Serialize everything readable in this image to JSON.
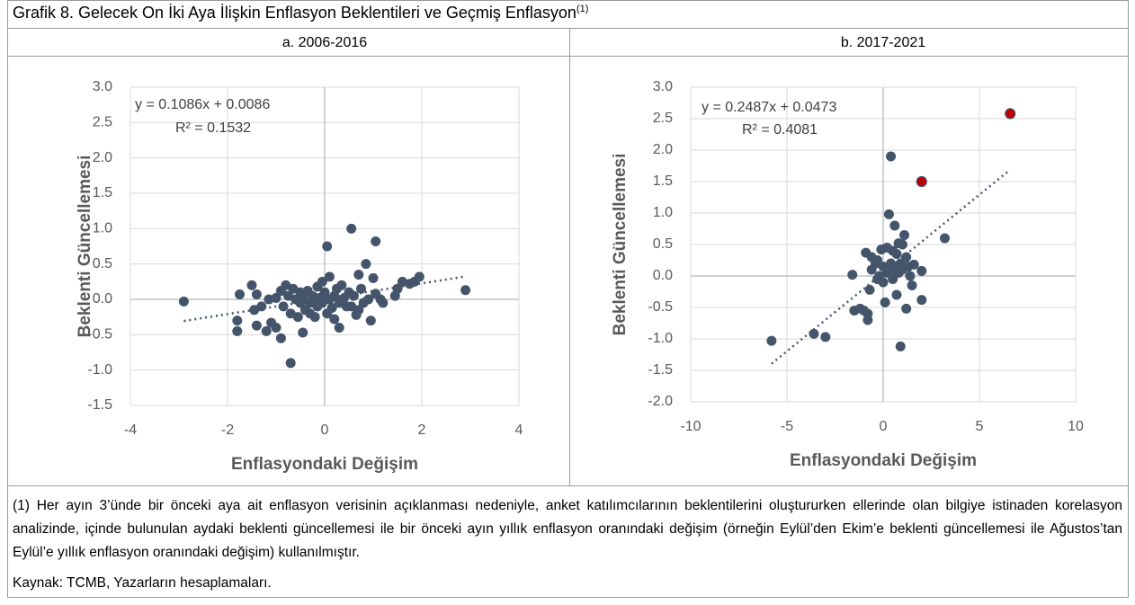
{
  "title": "Grafik 8. Gelecek On İki Aya İlişkin Enflasyon Beklentileri ve Geçmiş Enflasyon",
  "title_note_marker": "(1)",
  "note": "(1) Her ayın 3’ünde bir önceki aya ait enflasyon verisinin açıklanması nedeniyle, anket katılımcılarının beklentilerini oluştururken ellerinde olan bilgiye istinaden korelasyon analizinde, içinde bulunulan aydaki beklenti güncellemesi ile bir önceki ayın yıllık enflasyon oranındaki değişim (örneğin Eylül’den Ekim’e beklenti güncellemesi ile Ağustos’tan Eylül’e yıllık enflasyon oranındaki değişim) kullanılmıştır.",
  "source": "Kaynak: TCMB, Yazarların hesaplamaları.",
  "chart_data": [
    {
      "type": "scatter",
      "subtitle": "a. 2006-2016",
      "xlabel": "Enflasyondaki Değişim",
      "ylabel": "Beklenti Güncellemesi",
      "xlim": [
        -4,
        4
      ],
      "xticks": [
        -4,
        -2,
        0,
        2,
        4
      ],
      "ylim": [
        -1.5,
        3
      ],
      "yticks": [
        {
          "value": 3,
          "label": "3.0"
        },
        2.5,
        {
          "value": 2,
          "label": "2.0"
        },
        1.5,
        {
          "value": 1,
          "label": "1.0"
        },
        0.5,
        {
          "value": 0,
          "label": "0.0"
        },
        -0.5,
        {
          "value": -1,
          "label": "-1.0"
        },
        -1.5
      ],
      "grid": true,
      "trendline": {
        "slope": 0.1086,
        "intercept": 0.0086,
        "equation": "y = 0.1086x + 0.0086",
        "r2": "R² = 0.1532"
      },
      "series": [
        {
          "color": "#44546a",
          "x": [
            -2.9,
            -1.75,
            -1.8,
            -1.8,
            -1.5,
            -1.45,
            -1.4,
            -1.4,
            -1.3,
            -1.2,
            -1.15,
            -1.1,
            -1.0,
            -1.0,
            -0.9,
            -0.9,
            -0.85,
            -0.8,
            -0.75,
            -0.7,
            -0.7,
            -0.65,
            -0.6,
            -0.55,
            -0.5,
            -0.5,
            -0.45,
            -0.4,
            -0.35,
            -0.3,
            -0.3,
            -0.25,
            -0.2,
            -0.15,
            -0.15,
            -0.1,
            -0.05,
            -0.05,
            0.0,
            0.05,
            0.05,
            0.1,
            0.1,
            0.15,
            0.2,
            0.2,
            0.25,
            0.3,
            0.35,
            0.4,
            0.45,
            0.5,
            0.55,
            0.55,
            0.6,
            0.65,
            0.7,
            0.75,
            0.8,
            0.85,
            0.9,
            0.95,
            1.0,
            1.05,
            1.05,
            1.15,
            1.2,
            1.45,
            1.5,
            1.6,
            1.75,
            1.85,
            1.95,
            2.9,
            -0.45,
            0.3,
            -0.2,
            0.7
          ],
          "y": [
            -0.03,
            0.07,
            -0.3,
            -0.45,
            0.2,
            -0.15,
            0.07,
            -0.37,
            -0.1,
            -0.45,
            0.0,
            -0.33,
            -0.4,
            0.02,
            0.12,
            -0.55,
            -0.1,
            0.2,
            0.05,
            -0.9,
            -0.2,
            0.15,
            0.0,
            -0.25,
            0.1,
            -0.05,
            0.03,
            -0.15,
            0.12,
            -0.05,
            -0.2,
            0.05,
            0.0,
            0.18,
            -0.1,
            0.02,
            0.25,
            -0.05,
            0.1,
            0.75,
            -0.2,
            0.32,
            0.0,
            -0.12,
            0.05,
            -0.28,
            0.15,
            -0.05,
            0.2,
            0.02,
            -0.1,
            0.1,
            1.0,
            -0.1,
            0.05,
            -0.22,
            0.35,
            0.15,
            -0.05,
            0.5,
            0.0,
            -0.3,
            0.3,
            0.82,
            0.08,
            0.0,
            -0.05,
            0.05,
            0.15,
            0.25,
            0.22,
            0.25,
            0.32,
            0.13,
            -0.47,
            -0.4,
            -0.25,
            -0.15
          ]
        }
      ]
    },
    {
      "type": "scatter",
      "subtitle": "b. 2017-2021",
      "xlabel": "Enflasyondaki Değişim",
      "ylabel": "Beklenti Güncellemesi",
      "xlim": [
        -10,
        10
      ],
      "xticks": [
        -10,
        -5,
        0,
        5,
        10
      ],
      "ylim": [
        -2,
        3
      ],
      "yticks": [
        {
          "value": 3,
          "label": "3.0"
        },
        2.5,
        {
          "value": 2,
          "label": "2.0"
        },
        1.5,
        {
          "value": 1,
          "label": "1.0"
        },
        0.5,
        {
          "value": 0,
          "label": "0.0"
        },
        -0.5,
        {
          "value": -1,
          "label": "-1.0"
        },
        -1.5,
        {
          "value": -2,
          "label": "-2.0"
        }
      ],
      "grid": true,
      "trendline": {
        "slope": 0.2487,
        "intercept": 0.0473,
        "equation": "y = 0.2487x + 0.0473",
        "r2": "R² = 0.4081"
      },
      "series": [
        {
          "color": "#44546a",
          "x": [
            -5.8,
            -3.6,
            -3.0,
            -1.6,
            -1.5,
            -1.2,
            -1.0,
            -0.9,
            -0.8,
            -0.8,
            -0.7,
            -0.6,
            -0.6,
            -0.4,
            -0.3,
            -0.2,
            -0.1,
            0.0,
            0.0,
            0.1,
            0.2,
            0.3,
            0.4,
            0.4,
            0.5,
            0.6,
            0.6,
            0.7,
            0.7,
            0.8,
            0.8,
            0.9,
            1.0,
            1.0,
            1.1,
            1.2,
            1.2,
            1.3,
            1.5,
            1.6,
            2.0,
            2.0,
            3.2,
            0.2,
            -0.3,
            0.9,
            1.4,
            0.5
          ],
          "y": [
            -1.03,
            -0.92,
            -0.97,
            0.02,
            -0.55,
            -0.52,
            -0.55,
            0.37,
            -0.7,
            -0.6,
            -0.22,
            0.3,
            0.1,
            0.2,
            -0.05,
            0.0,
            0.42,
            0.15,
            -0.1,
            -0.42,
            0.45,
            0.98,
            1.9,
            0.2,
            -0.05,
            0.8,
            0.1,
            -0.3,
            0.35,
            0.52,
            0.05,
            -1.12,
            0.5,
            0.1,
            0.65,
            0.3,
            -0.52,
            0.15,
            -0.15,
            0.18,
            0.08,
            -0.38,
            0.6,
            0.05,
            0.25,
            0.2,
            0.0,
            0.4
          ]
        },
        {
          "color": "#c00000",
          "x": [
            2.0,
            6.6
          ],
          "y": [
            1.5,
            2.58
          ]
        }
      ]
    }
  ]
}
